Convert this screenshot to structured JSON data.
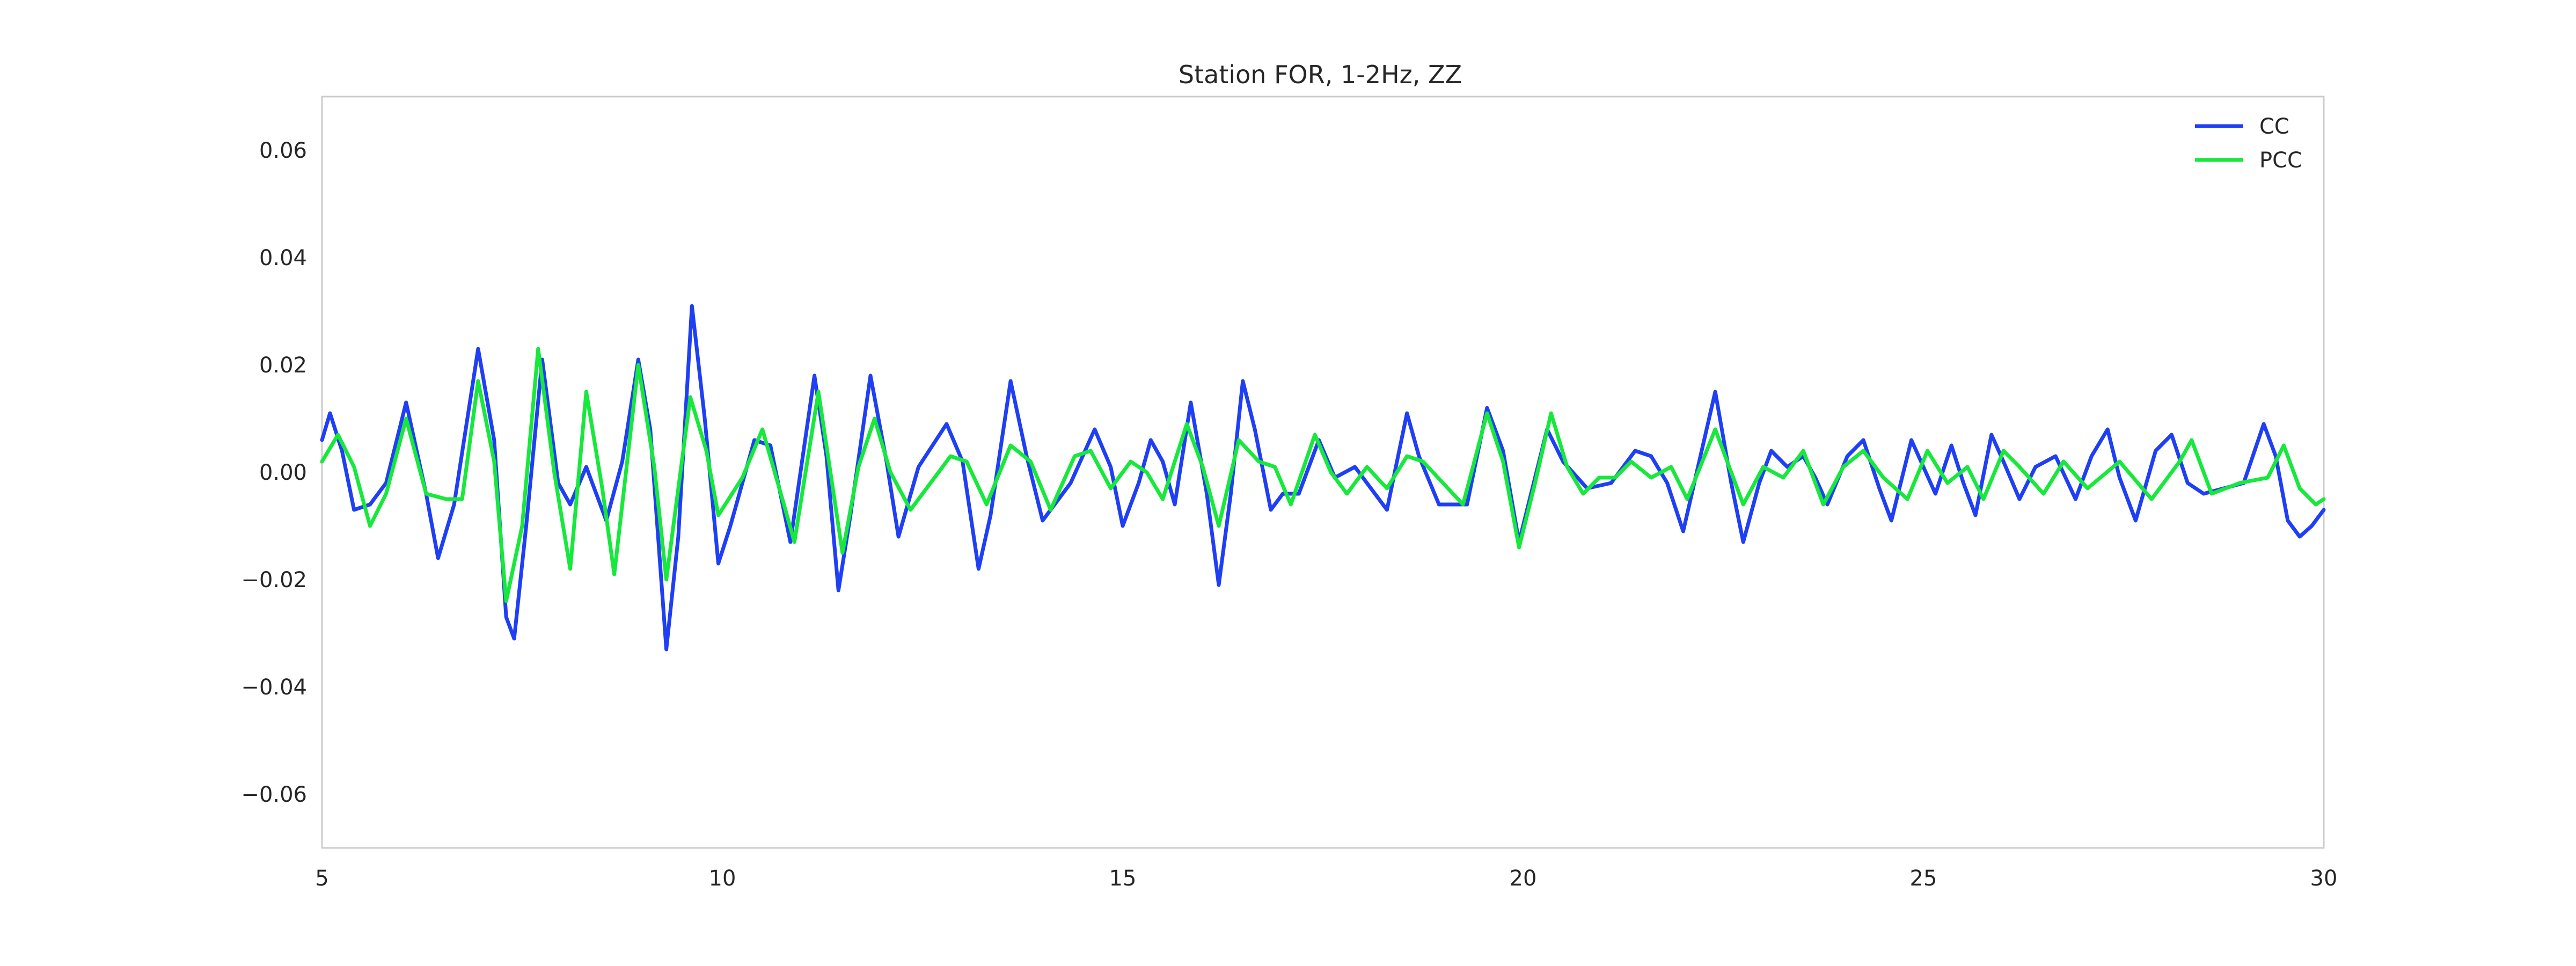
{
  "colors": {
    "background": "#ffffff",
    "axes_edge": "#cccccc"
  },
  "chart_data": {
    "type": "line",
    "title": "Station FOR, 1-2Hz, ZZ",
    "xlabel": "",
    "ylabel": "",
    "xlim": [
      5,
      30
    ],
    "ylim": [
      -0.07,
      0.07
    ],
    "grid": false,
    "legend_position": "top-right",
    "x_ticks": [
      5,
      10,
      15,
      20,
      25,
      30
    ],
    "x_tick_labels": [
      "5",
      "10",
      "15",
      "20",
      "25",
      "30"
    ],
    "y_ticks": [
      -0.06,
      -0.04,
      -0.02,
      0.0,
      0.02,
      0.04,
      0.06
    ],
    "y_tick_labels": [
      "−0.06",
      "−0.04",
      "−0.02",
      "0.00",
      "0.02",
      "0.04",
      "0.06"
    ],
    "series": [
      {
        "name": "CC",
        "color": "#1f3ff5",
        "points": [
          [
            5.0,
            0.006
          ],
          [
            5.1,
            0.011
          ],
          [
            5.25,
            0.004
          ],
          [
            5.4,
            -0.007
          ],
          [
            5.6,
            -0.006
          ],
          [
            5.8,
            -0.002
          ],
          [
            6.05,
            0.013
          ],
          [
            6.3,
            -0.004
          ],
          [
            6.45,
            -0.016
          ],
          [
            6.65,
            -0.006
          ],
          [
            6.95,
            0.023
          ],
          [
            7.15,
            0.006
          ],
          [
            7.3,
            -0.027
          ],
          [
            7.4,
            -0.031
          ],
          [
            7.55,
            -0.01
          ],
          [
            7.75,
            0.021
          ],
          [
            7.95,
            -0.002
          ],
          [
            8.1,
            -0.006
          ],
          [
            8.3,
            0.001
          ],
          [
            8.55,
            -0.009
          ],
          [
            8.75,
            0.002
          ],
          [
            8.95,
            0.021
          ],
          [
            9.1,
            0.008
          ],
          [
            9.3,
            -0.033
          ],
          [
            9.45,
            -0.012
          ],
          [
            9.62,
            0.031
          ],
          [
            9.78,
            0.01
          ],
          [
            9.95,
            -0.017
          ],
          [
            10.1,
            -0.01
          ],
          [
            10.4,
            0.006
          ],
          [
            10.6,
            0.005
          ],
          [
            10.85,
            -0.013
          ],
          [
            11.15,
            0.018
          ],
          [
            11.3,
            0.003
          ],
          [
            11.45,
            -0.022
          ],
          [
            11.6,
            -0.008
          ],
          [
            11.85,
            0.018
          ],
          [
            12.05,
            0.002
          ],
          [
            12.2,
            -0.012
          ],
          [
            12.45,
            0.001
          ],
          [
            12.8,
            0.009
          ],
          [
            13.0,
            0.002
          ],
          [
            13.2,
            -0.018
          ],
          [
            13.35,
            -0.008
          ],
          [
            13.6,
            0.017
          ],
          [
            13.8,
            0.003
          ],
          [
            14.0,
            -0.009
          ],
          [
            14.35,
            -0.002
          ],
          [
            14.65,
            0.008
          ],
          [
            14.85,
            0.001
          ],
          [
            15.0,
            -0.01
          ],
          [
            15.2,
            -0.002
          ],
          [
            15.35,
            0.006
          ],
          [
            15.5,
            0.002
          ],
          [
            15.65,
            -0.006
          ],
          [
            15.85,
            0.013
          ],
          [
            16.05,
            -0.004
          ],
          [
            16.2,
            -0.021
          ],
          [
            16.35,
            -0.004
          ],
          [
            16.5,
            0.017
          ],
          [
            16.65,
            0.008
          ],
          [
            16.85,
            -0.007
          ],
          [
            17.0,
            -0.004
          ],
          [
            17.2,
            -0.004
          ],
          [
            17.45,
            0.006
          ],
          [
            17.65,
            -0.001
          ],
          [
            17.9,
            0.001
          ],
          [
            18.1,
            -0.003
          ],
          [
            18.3,
            -0.007
          ],
          [
            18.55,
            0.011
          ],
          [
            18.7,
            0.003
          ],
          [
            18.95,
            -0.006
          ],
          [
            19.3,
            -0.006
          ],
          [
            19.55,
            0.012
          ],
          [
            19.75,
            0.004
          ],
          [
            19.95,
            -0.013
          ],
          [
            20.1,
            -0.004
          ],
          [
            20.3,
            0.008
          ],
          [
            20.5,
            0.002
          ],
          [
            20.8,
            -0.003
          ],
          [
            21.1,
            -0.002
          ],
          [
            21.4,
            0.004
          ],
          [
            21.6,
            0.003
          ],
          [
            21.8,
            -0.002
          ],
          [
            22.0,
            -0.011
          ],
          [
            22.2,
            0.002
          ],
          [
            22.4,
            0.015
          ],
          [
            22.6,
            -0.002
          ],
          [
            22.75,
            -0.013
          ],
          [
            22.95,
            -0.002
          ],
          [
            23.1,
            0.004
          ],
          [
            23.3,
            0.001
          ],
          [
            23.5,
            0.003
          ],
          [
            23.65,
            -0.001
          ],
          [
            23.8,
            -0.006
          ],
          [
            24.05,
            0.003
          ],
          [
            24.25,
            0.006
          ],
          [
            24.45,
            -0.003
          ],
          [
            24.6,
            -0.009
          ],
          [
            24.85,
            0.006
          ],
          [
            25.0,
            0.001
          ],
          [
            25.15,
            -0.004
          ],
          [
            25.35,
            0.005
          ],
          [
            25.5,
            -0.002
          ],
          [
            25.65,
            -0.008
          ],
          [
            25.85,
            0.007
          ],
          [
            26.0,
            0.002
          ],
          [
            26.2,
            -0.005
          ],
          [
            26.4,
            0.001
          ],
          [
            26.65,
            0.003
          ],
          [
            26.9,
            -0.005
          ],
          [
            27.1,
            0.003
          ],
          [
            27.3,
            0.008
          ],
          [
            27.45,
            -0.001
          ],
          [
            27.65,
            -0.009
          ],
          [
            27.9,
            0.004
          ],
          [
            28.1,
            0.007
          ],
          [
            28.3,
            -0.002
          ],
          [
            28.5,
            -0.004
          ],
          [
            28.75,
            -0.003
          ],
          [
            29.0,
            -0.002
          ],
          [
            29.25,
            0.009
          ],
          [
            29.4,
            0.003
          ],
          [
            29.55,
            -0.009
          ],
          [
            29.7,
            -0.012
          ],
          [
            29.85,
            -0.01
          ],
          [
            30.0,
            -0.007
          ]
        ]
      },
      {
        "name": "PCC",
        "color": "#17e83c",
        "points": [
          [
            5.0,
            0.002
          ],
          [
            5.2,
            0.007
          ],
          [
            5.4,
            0.001
          ],
          [
            5.6,
            -0.01
          ],
          [
            5.8,
            -0.004
          ],
          [
            6.05,
            0.01
          ],
          [
            6.3,
            -0.004
          ],
          [
            6.55,
            -0.005
          ],
          [
            6.75,
            -0.005
          ],
          [
            6.95,
            0.017
          ],
          [
            7.15,
            0.002
          ],
          [
            7.3,
            -0.024
          ],
          [
            7.5,
            -0.01
          ],
          [
            7.7,
            0.023
          ],
          [
            7.9,
            0.0
          ],
          [
            8.1,
            -0.018
          ],
          [
            8.3,
            0.015
          ],
          [
            8.5,
            -0.003
          ],
          [
            8.65,
            -0.019
          ],
          [
            8.95,
            0.02
          ],
          [
            9.15,
            0.001
          ],
          [
            9.3,
            -0.02
          ],
          [
            9.6,
            0.014
          ],
          [
            9.8,
            0.004
          ],
          [
            9.95,
            -0.008
          ],
          [
            10.25,
            -0.001
          ],
          [
            10.5,
            0.008
          ],
          [
            10.75,
            -0.005
          ],
          [
            10.9,
            -0.013
          ],
          [
            11.2,
            0.015
          ],
          [
            11.35,
            0.0
          ],
          [
            11.5,
            -0.015
          ],
          [
            11.7,
            0.001
          ],
          [
            11.9,
            0.01
          ],
          [
            12.1,
            0.0
          ],
          [
            12.35,
            -0.007
          ],
          [
            12.6,
            -0.002
          ],
          [
            12.85,
            0.003
          ],
          [
            13.05,
            0.002
          ],
          [
            13.3,
            -0.006
          ],
          [
            13.6,
            0.005
          ],
          [
            13.85,
            0.002
          ],
          [
            14.1,
            -0.007
          ],
          [
            14.4,
            0.003
          ],
          [
            14.6,
            0.004
          ],
          [
            14.85,
            -0.003
          ],
          [
            15.1,
            0.002
          ],
          [
            15.3,
            0.0
          ],
          [
            15.5,
            -0.005
          ],
          [
            15.8,
            0.009
          ],
          [
            16.0,
            0.001
          ],
          [
            16.2,
            -0.01
          ],
          [
            16.45,
            0.006
          ],
          [
            16.7,
            0.002
          ],
          [
            16.9,
            0.001
          ],
          [
            17.1,
            -0.006
          ],
          [
            17.4,
            0.007
          ],
          [
            17.6,
            0.0
          ],
          [
            17.8,
            -0.004
          ],
          [
            18.05,
            0.001
          ],
          [
            18.3,
            -0.003
          ],
          [
            18.55,
            0.003
          ],
          [
            18.75,
            0.002
          ],
          [
            19.0,
            -0.002
          ],
          [
            19.25,
            -0.006
          ],
          [
            19.55,
            0.011
          ],
          [
            19.75,
            0.002
          ],
          [
            19.95,
            -0.014
          ],
          [
            20.15,
            -0.002
          ],
          [
            20.35,
            0.011
          ],
          [
            20.55,
            0.001
          ],
          [
            20.75,
            -0.004
          ],
          [
            20.95,
            -0.001
          ],
          [
            21.15,
            -0.001
          ],
          [
            21.35,
            0.002
          ],
          [
            21.6,
            -0.001
          ],
          [
            21.85,
            0.001
          ],
          [
            22.05,
            -0.005
          ],
          [
            22.4,
            0.008
          ],
          [
            22.6,
            0.0
          ],
          [
            22.75,
            -0.006
          ],
          [
            23.0,
            0.001
          ],
          [
            23.25,
            -0.001
          ],
          [
            23.5,
            0.004
          ],
          [
            23.75,
            -0.006
          ],
          [
            24.0,
            0.001
          ],
          [
            24.25,
            0.004
          ],
          [
            24.5,
            -0.001
          ],
          [
            24.8,
            -0.005
          ],
          [
            25.05,
            0.004
          ],
          [
            25.3,
            -0.002
          ],
          [
            25.55,
            0.001
          ],
          [
            25.75,
            -0.005
          ],
          [
            26.0,
            0.004
          ],
          [
            26.2,
            0.001
          ],
          [
            26.5,
            -0.004
          ],
          [
            26.75,
            0.002
          ],
          [
            27.05,
            -0.003
          ],
          [
            27.45,
            0.002
          ],
          [
            27.85,
            -0.005
          ],
          [
            28.2,
            0.002
          ],
          [
            28.35,
            0.006
          ],
          [
            28.6,
            -0.004
          ],
          [
            28.95,
            -0.002
          ],
          [
            29.3,
            -0.001
          ],
          [
            29.5,
            0.005
          ],
          [
            29.7,
            -0.003
          ],
          [
            29.9,
            -0.006
          ],
          [
            30.0,
            -0.005
          ]
        ]
      }
    ]
  }
}
